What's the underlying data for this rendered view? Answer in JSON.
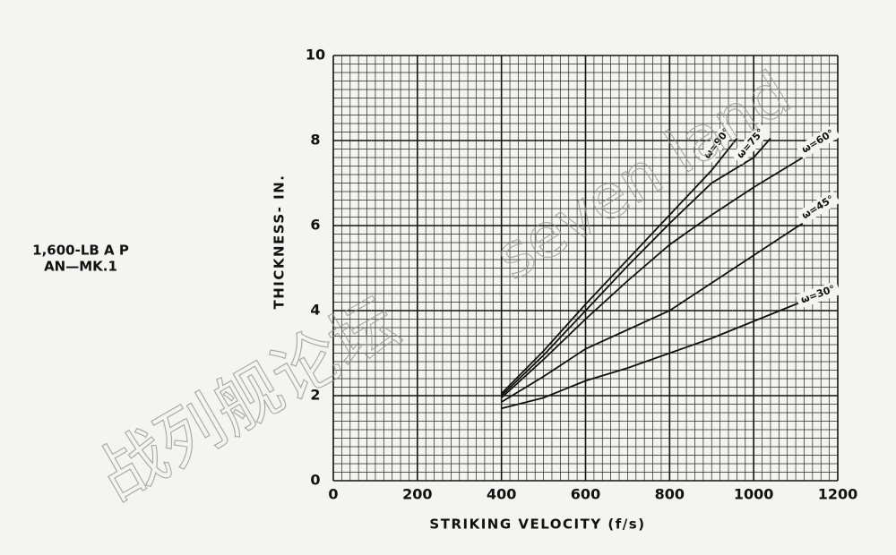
{
  "chart_data": {
    "type": "line",
    "title_lines": [
      "1,600-LB A P",
      "AN—MK.1"
    ],
    "xlabel": "STRIKING VELOCITY (f/s)",
    "ylabel": "THICKNESS- IN.",
    "xlim": [
      0,
      1200
    ],
    "xticks": [
      0,
      200,
      400,
      600,
      800,
      1000,
      1200
    ],
    "ylim": [
      0,
      10
    ],
    "yticks": [
      0,
      2,
      4,
      6,
      8,
      10
    ],
    "grid": true,
    "color": "#111111",
    "watermark": [
      "战列舰论坛",
      "seven land"
    ],
    "series": [
      {
        "name": "ω=90°",
        "x": [
          400,
          500,
          600,
          700,
          800,
          900,
          960
        ],
        "values": [
          2.05,
          3.05,
          4.15,
          5.2,
          6.25,
          7.3,
          8.05
        ]
      },
      {
        "name": "ω=75°",
        "x": [
          400,
          500,
          600,
          700,
          800,
          900,
          1000,
          1040
        ],
        "values": [
          2.0,
          2.95,
          4.0,
          5.05,
          6.05,
          7.0,
          7.6,
          8.05
        ]
      },
      {
        "name": "ω=60°",
        "x": [
          400,
          500,
          600,
          700,
          800,
          900,
          1000,
          1100,
          1200
        ],
        "values": [
          1.95,
          2.85,
          3.8,
          4.7,
          5.55,
          6.25,
          6.9,
          7.5,
          8.1
        ]
      },
      {
        "name": "ω=45°",
        "x": [
          400,
          500,
          600,
          700,
          800,
          900,
          1000,
          1100,
          1200
        ],
        "values": [
          1.85,
          2.45,
          3.1,
          3.55,
          4.0,
          4.65,
          5.3,
          5.95,
          6.55
        ]
      },
      {
        "name": "ω=30°",
        "x": [
          400,
          500,
          600,
          700,
          800,
          900,
          1000,
          1100,
          1200
        ],
        "values": [
          1.7,
          1.95,
          2.35,
          2.65,
          3.0,
          3.35,
          3.75,
          4.15,
          4.5
        ]
      }
    ]
  }
}
